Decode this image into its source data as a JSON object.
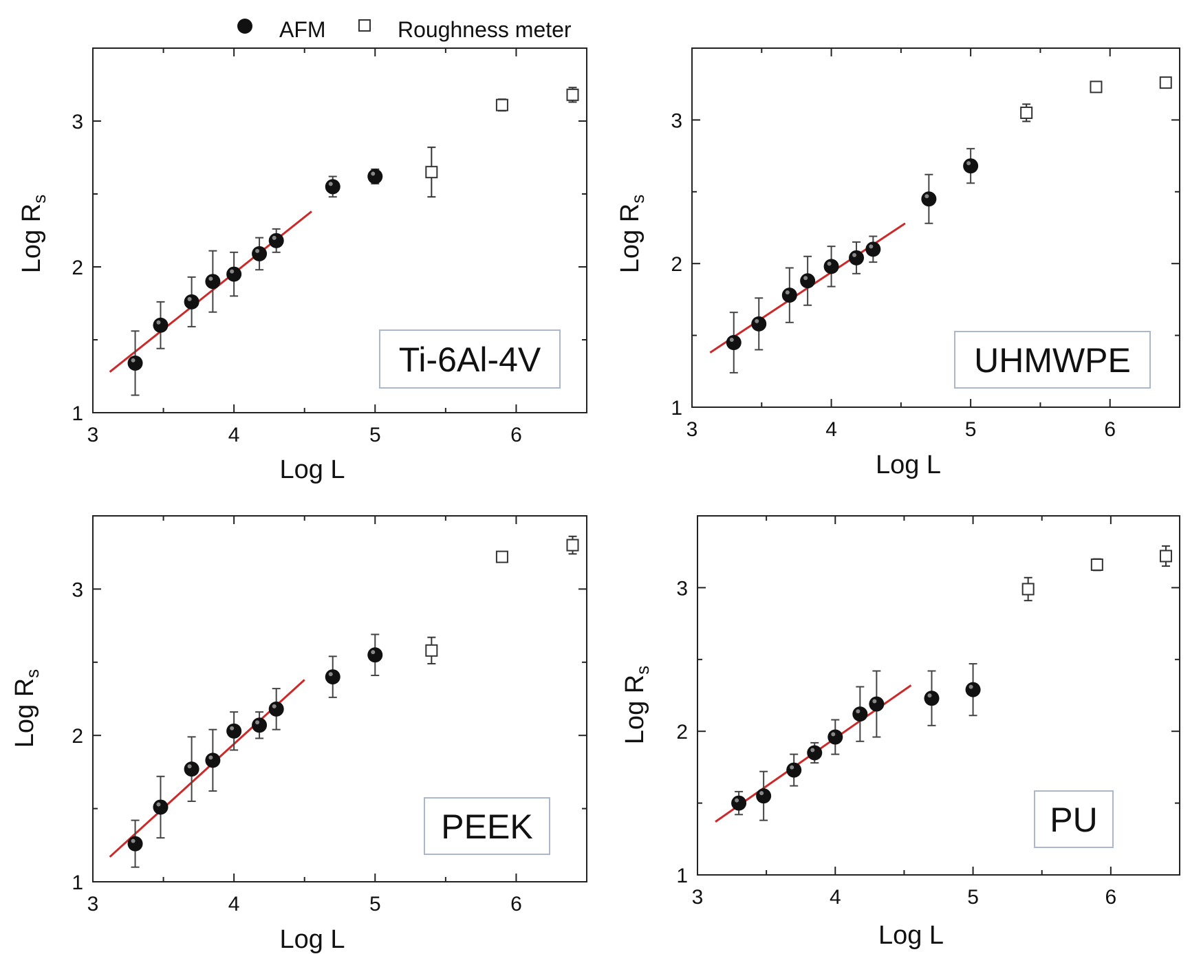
{
  "legend": {
    "afm_label": "AFM",
    "meter_label": "Roughness meter"
  },
  "colors": {
    "fit_line": "#cc2a2a",
    "afm_marker": "#111111",
    "meter_marker": "#333333",
    "label_box_border": "#aab7cc",
    "axis": "#222222"
  },
  "chart_data": [
    {
      "type": "scatter",
      "panel_label": "Ti-6Al-4V",
      "xlabel": "Log L",
      "ylabel_main": "Log R",
      "ylabel_sub": "s",
      "xlim": [
        3,
        6.5
      ],
      "ylim": [
        1,
        3.5
      ],
      "xticks": [
        3,
        4,
        5,
        6
      ],
      "yticks": [
        1,
        2,
        3
      ],
      "fit_line": {
        "x": [
          3.12,
          4.55
        ],
        "y": [
          1.28,
          2.38
        ]
      },
      "series": [
        {
          "name": "AFM",
          "marker": "filled-circle",
          "x": [
            3.3,
            3.48,
            3.7,
            3.85,
            4.0,
            4.18,
            4.3,
            4.7,
            5.0
          ],
          "y": [
            1.34,
            1.6,
            1.76,
            1.9,
            1.95,
            2.09,
            2.18,
            2.55,
            2.62
          ],
          "err": [
            0.22,
            0.16,
            0.17,
            0.21,
            0.15,
            0.11,
            0.08,
            0.07,
            0.05
          ]
        },
        {
          "name": "Roughness meter",
          "marker": "open-square",
          "x": [
            5.4,
            5.9,
            6.4
          ],
          "y": [
            2.65,
            3.11,
            3.18
          ],
          "err": [
            0.17,
            0.04,
            0.05
          ]
        }
      ]
    },
    {
      "type": "scatter",
      "panel_label": "UHMWPE",
      "xlabel": "Log L",
      "ylabel_main": "Log R",
      "ylabel_sub": "s",
      "xlim": [
        3,
        6.5
      ],
      "ylim": [
        1,
        3.5
      ],
      "xticks": [
        3,
        4,
        5,
        6
      ],
      "yticks": [
        1,
        2,
        3
      ],
      "fit_line": {
        "x": [
          3.13,
          4.53
        ],
        "y": [
          1.38,
          2.28
        ]
      },
      "series": [
        {
          "name": "AFM",
          "marker": "filled-circle",
          "x": [
            3.3,
            3.48,
            3.7,
            3.83,
            4.0,
            4.18,
            4.3,
            4.7,
            5.0
          ],
          "y": [
            1.45,
            1.58,
            1.78,
            1.88,
            1.98,
            2.04,
            2.1,
            2.45,
            2.68
          ],
          "err": [
            0.21,
            0.18,
            0.19,
            0.17,
            0.14,
            0.11,
            0.09,
            0.17,
            0.12
          ]
        },
        {
          "name": "Roughness meter",
          "marker": "open-square",
          "x": [
            5.4,
            5.9,
            6.4
          ],
          "y": [
            3.05,
            3.23,
            3.26
          ],
          "err": [
            0.06,
            0.03,
            0.03
          ]
        }
      ]
    },
    {
      "type": "scatter",
      "panel_label": "PEEK",
      "xlabel": "Log L",
      "ylabel_main": "Log R",
      "ylabel_sub": "s",
      "xlim": [
        3,
        6.5
      ],
      "ylim": [
        1,
        3.5
      ],
      "xticks": [
        3,
        4,
        5,
        6
      ],
      "yticks": [
        1,
        2,
        3
      ],
      "fit_line": {
        "x": [
          3.12,
          4.5
        ],
        "y": [
          1.17,
          2.38
        ]
      },
      "series": [
        {
          "name": "AFM",
          "marker": "filled-circle",
          "x": [
            3.3,
            3.48,
            3.7,
            3.85,
            4.0,
            4.18,
            4.3,
            4.7,
            5.0
          ],
          "y": [
            1.26,
            1.51,
            1.77,
            1.83,
            2.03,
            2.07,
            2.18,
            2.4,
            2.55
          ],
          "err": [
            0.16,
            0.21,
            0.22,
            0.21,
            0.13,
            0.09,
            0.14,
            0.14,
            0.14
          ]
        },
        {
          "name": "Roughness meter",
          "marker": "open-square",
          "x": [
            5.4,
            5.9,
            6.4
          ],
          "y": [
            2.58,
            3.22,
            3.3
          ],
          "err": [
            0.09,
            0.03,
            0.06
          ]
        }
      ]
    },
    {
      "type": "scatter",
      "panel_label": "PU",
      "xlabel": "Log L",
      "ylabel_main": "Log R",
      "ylabel_sub": "s",
      "xlim": [
        3,
        6.5
      ],
      "ylim": [
        1,
        3.5
      ],
      "xticks": [
        3,
        4,
        5,
        6
      ],
      "yticks": [
        1,
        2,
        3
      ],
      "fit_line": {
        "x": [
          3.13,
          4.55
        ],
        "y": [
          1.37,
          2.32
        ]
      },
      "series": [
        {
          "name": "AFM",
          "marker": "filled-circle",
          "x": [
            3.3,
            3.48,
            3.7,
            3.85,
            4.0,
            4.18,
            4.3,
            4.7,
            5.0
          ],
          "y": [
            1.5,
            1.55,
            1.73,
            1.85,
            1.96,
            2.12,
            2.19,
            2.23,
            2.29
          ],
          "err": [
            0.08,
            0.17,
            0.11,
            0.07,
            0.12,
            0.19,
            0.23,
            0.19,
            0.18
          ]
        },
        {
          "name": "Roughness meter",
          "marker": "open-square",
          "x": [
            5.4,
            5.9,
            6.4
          ],
          "y": [
            2.99,
            3.16,
            3.22
          ],
          "err": [
            0.08,
            0.04,
            0.07
          ]
        }
      ]
    }
  ]
}
